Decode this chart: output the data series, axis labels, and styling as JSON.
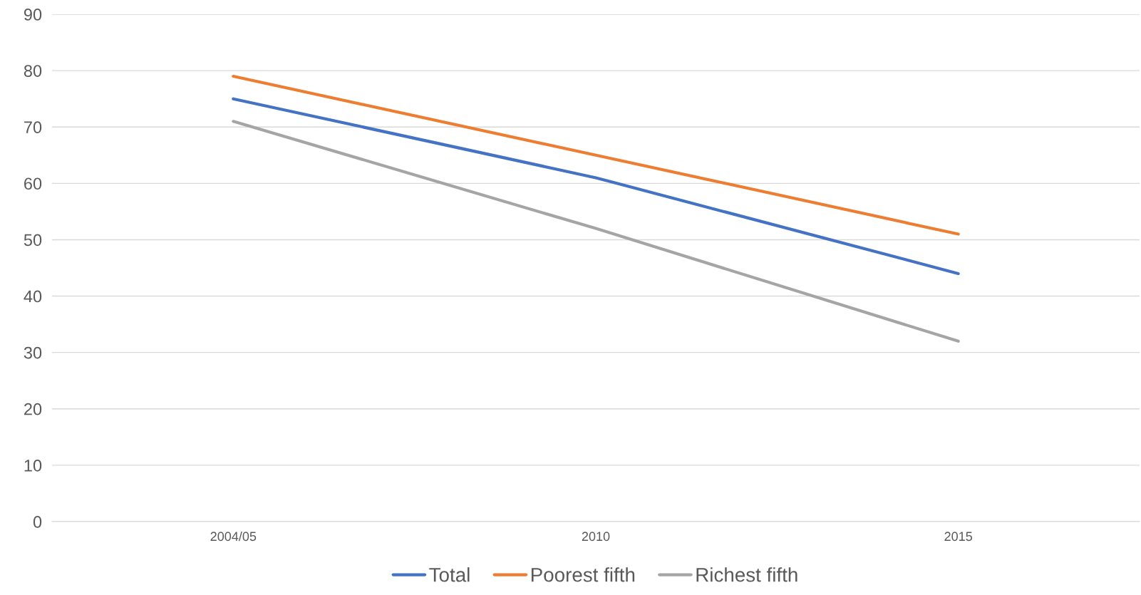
{
  "chart_data": {
    "type": "line",
    "categories": [
      "2004/05",
      "2010",
      "2015"
    ],
    "series": [
      {
        "name": "Total",
        "color": "#4472c4",
        "values": [
          75,
          61,
          44
        ]
      },
      {
        "name": "Poorest fifth",
        "color": "#ed7d31",
        "values": [
          79,
          65,
          51
        ]
      },
      {
        "name": "Richest fifth",
        "color": "#a5a5a5",
        "values": [
          71,
          52,
          32
        ]
      }
    ],
    "ylim": [
      0,
      90
    ],
    "yticks": [
      0,
      10,
      20,
      30,
      40,
      50,
      60,
      70,
      80,
      90
    ],
    "grid": "y",
    "legend": "bottom",
    "marker": "none",
    "line_style": "solid"
  }
}
